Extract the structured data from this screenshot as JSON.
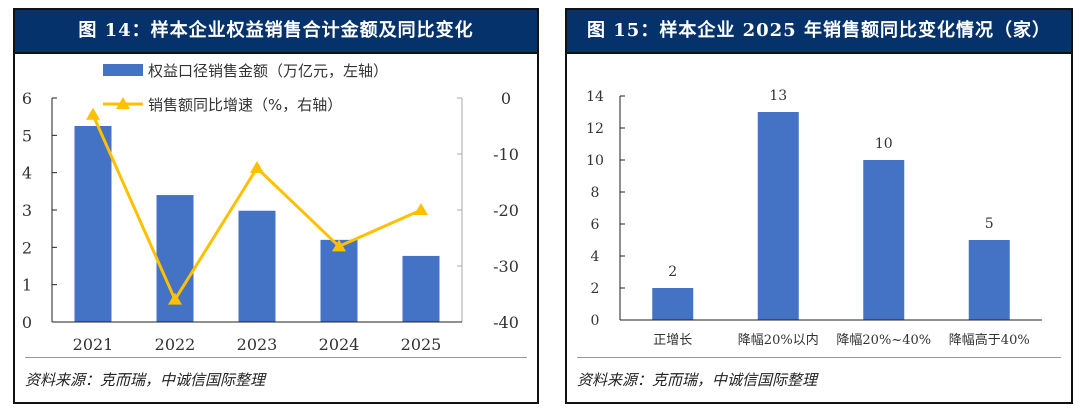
{
  "chart_data": [
    {
      "type": "bar+line",
      "title": "图 14：样本企业权益销售合计金额及同比变化",
      "categories": [
        "2021",
        "2022",
        "2023",
        "2024",
        "2025"
      ],
      "series": [
        {
          "name": "权益口径销售金额（万亿元，左轴）",
          "type": "bar",
          "axis": "left",
          "values": [
            5.25,
            3.4,
            2.98,
            2.2,
            1.77
          ],
          "color": "#4472c4"
        },
        {
          "name": "销售额同比增速（%，右轴）",
          "type": "line",
          "axis": "right",
          "values": [
            -3,
            -36,
            -12.5,
            -26.5,
            -20
          ],
          "color": "#ffc000"
        }
      ],
      "left_ylim": [
        0,
        6
      ],
      "left_ticks": [
        "0",
        "1",
        "2",
        "3",
        "4",
        "5",
        "6"
      ],
      "right_ylim": [
        -40,
        0
      ],
      "right_ticks": [
        "0",
        "-10",
        "-20",
        "-30",
        "-40"
      ],
      "legend": "top",
      "source": "资料来源：克而瑞，中诚信国际整理"
    },
    {
      "type": "bar",
      "title": "图 15：样本企业 2025 年销售额同比变化情况（家）",
      "categories": [
        "正增长",
        "降幅20%以内",
        "降幅20%~40%",
        "降幅高于40%"
      ],
      "values": [
        2,
        13,
        10,
        5
      ],
      "labels": [
        "2",
        "13",
        "10",
        "5"
      ],
      "color": "#4472c4",
      "ylim": [
        0,
        14
      ],
      "ticks": [
        "0",
        "2",
        "4",
        "6",
        "8",
        "10",
        "12",
        "14"
      ],
      "source": "资料来源：克而瑞，中诚信国际整理"
    }
  ]
}
